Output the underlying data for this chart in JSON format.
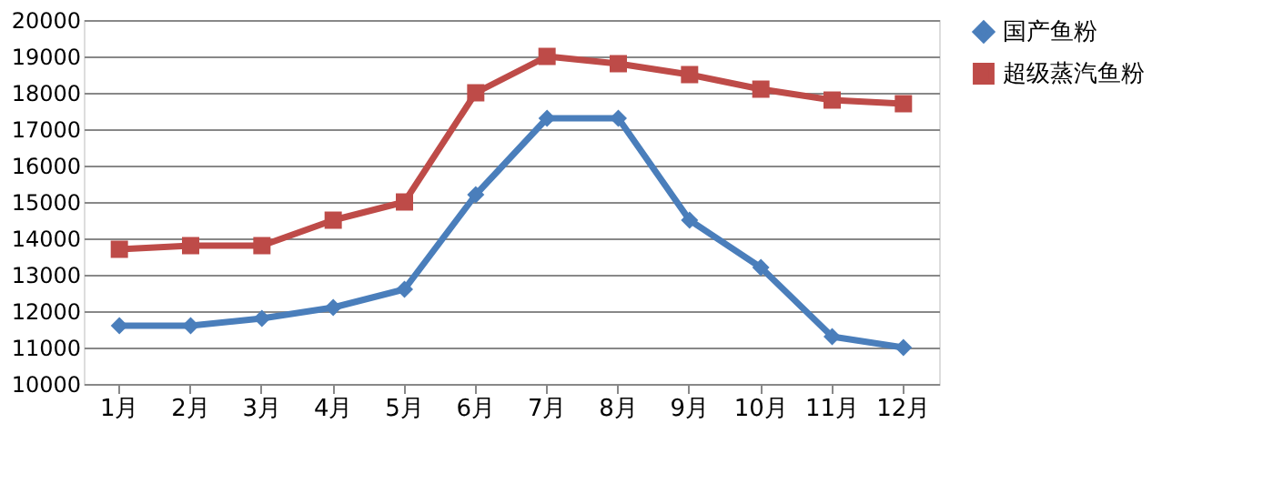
{
  "chart_data": {
    "type": "line",
    "categories": [
      "1月",
      "2月",
      "3月",
      "4月",
      "5月",
      "6月",
      "7月",
      "8月",
      "9月",
      "10月",
      "11月",
      "12月"
    ],
    "series": [
      {
        "name": "国产鱼粉",
        "color": "#4a7ebb",
        "marker": "diamond",
        "values": [
          11600,
          11600,
          11800,
          12100,
          12600,
          15200,
          17300,
          17300,
          14500,
          13200,
          11300,
          11000
        ]
      },
      {
        "name": "超级蒸汽鱼粉",
        "color": "#be4b48",
        "marker": "square",
        "values": [
          13700,
          13800,
          13800,
          14500,
          15000,
          18000,
          19000,
          18800,
          18500,
          18100,
          17800,
          17700
        ]
      }
    ],
    "ylim": [
      10000,
      20000
    ],
    "yticks": [
      10000,
      11000,
      12000,
      13000,
      14000,
      15000,
      16000,
      17000,
      18000,
      19000,
      20000
    ],
    "grid": "y",
    "legend": "right",
    "line_style": "solid"
  }
}
